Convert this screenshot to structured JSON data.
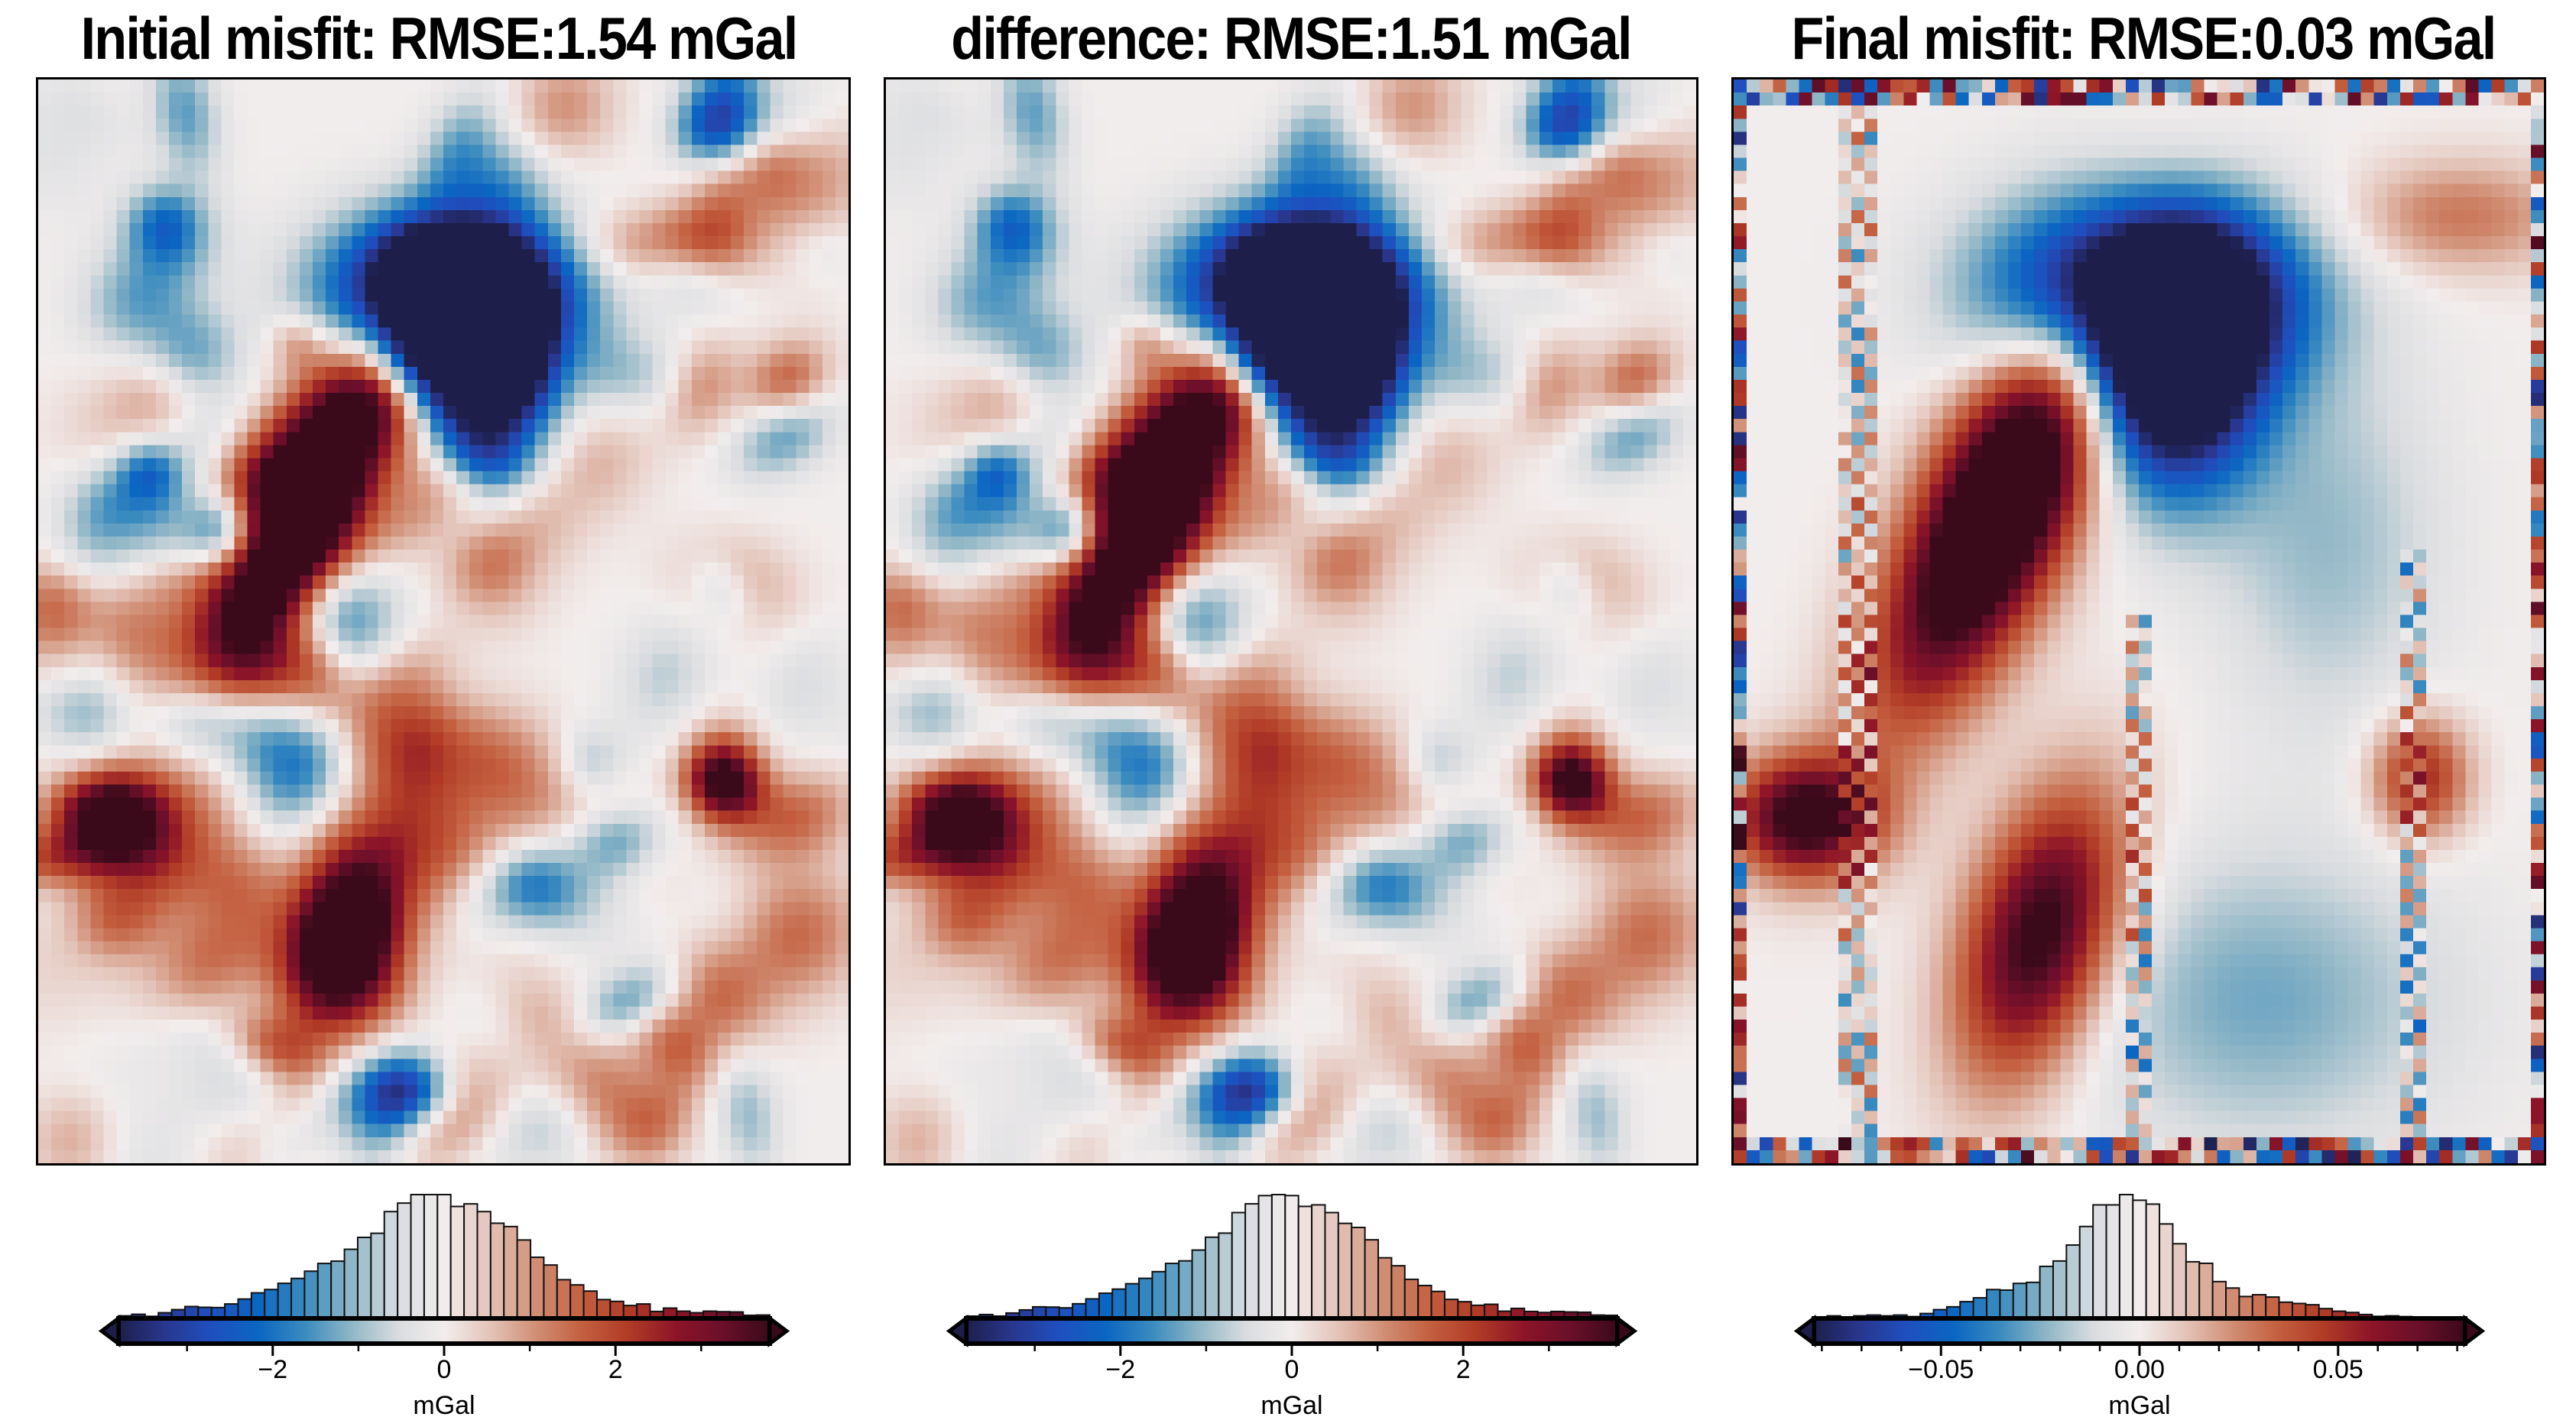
{
  "colormap": [
    "#1d1f4a",
    "#29378f",
    "#1f4fbf",
    "#0b66c2",
    "#3a8bbf",
    "#8fb6c6",
    "#d9dcdf",
    "#f2eded",
    "#e3c3b8",
    "#d08d73",
    "#c35e3e",
    "#b03a26",
    "#8c1428",
    "#6a0f2a",
    "#3a0a1a"
  ],
  "chart_data": [
    {
      "type": "bar",
      "title": "Initial misfit: RMSE:1.54 mGal",
      "xlabel": "mGal",
      "range": [
        -3.8,
        3.8
      ],
      "ticks": [
        {
          "value": -2,
          "label": "−2"
        },
        {
          "value": 0,
          "label": "0"
        },
        {
          "value": 2,
          "label": "2"
        }
      ],
      "minor_step": 1,
      "histogram_counts": [
        10,
        16,
        8,
        22,
        34,
        46,
        43,
        42,
        56,
        75,
        99,
        112,
        136,
        155,
        183,
        213,
        222,
        268,
        314,
        330,
        414,
        447,
        480,
        480,
        480,
        434,
        444,
        414,
        369,
        356,
        304,
        237,
        207,
        150,
        130,
        106,
        73,
        66,
        50,
        56,
        27,
        40,
        28,
        22,
        28,
        26,
        25,
        12,
        13
      ]
    },
    {
      "type": "bar",
      "title": "difference: RMSE:1.51 mGal",
      "xlabel": "mGal",
      "range": [
        -3.8,
        3.8
      ],
      "ticks": [
        {
          "value": -2,
          "label": "−2"
        },
        {
          "value": 0,
          "label": "0"
        },
        {
          "value": 2,
          "label": "2"
        }
      ],
      "minor_step": 1,
      "histogram_counts": [
        9,
        15,
        9,
        21,
        33,
        45,
        44,
        41,
        57,
        76,
        98,
        114,
        135,
        156,
        182,
        214,
        224,
        266,
        316,
        332,
        412,
        446,
        478,
        482,
        478,
        436,
        442,
        412,
        370,
        354,
        306,
        236,
        205,
        152,
        128,
        105,
        74,
        65,
        51,
        55,
        28,
        39,
        27,
        23,
        27,
        25,
        24,
        13,
        12
      ]
    },
    {
      "type": "bar",
      "title": "Final misfit: RMSE:0.03 mGal",
      "xlabel": "mGal",
      "range": [
        -0.082,
        0.082
      ],
      "ticks": [
        {
          "value": -0.05,
          "label": "−0.05"
        },
        {
          "value": 0,
          "label": "0.00"
        },
        {
          "value": 0.05,
          "label": "0.05"
        }
      ],
      "minor_step": 0.01,
      "histogram_counts": [
        6,
        10,
        4,
        10,
        13,
        10,
        13,
        7,
        19,
        34,
        45,
        65,
        80,
        112,
        110,
        136,
        140,
        202,
        223,
        285,
        357,
        441,
        441,
        481,
        459,
        444,
        367,
        290,
        220,
        214,
        143,
        118,
        85,
        92,
        83,
        63,
        58,
        53,
        38,
        28,
        23,
        15,
        8,
        10,
        7,
        6,
        5,
        4,
        3
      ]
    }
  ]
}
